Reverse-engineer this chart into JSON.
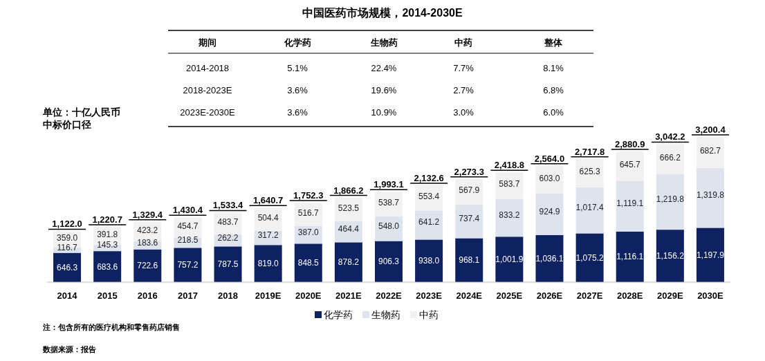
{
  "chart_data": {
    "type": "bar",
    "stacked": true,
    "title": "中国医药市场规模，2014-2030E",
    "categories": [
      "2014",
      "2015",
      "2016",
      "2017",
      "2018",
      "2019E",
      "2020E",
      "2021E",
      "2022E",
      "2023E",
      "2024E",
      "2025E",
      "2026E",
      "2027E",
      "2028E",
      "2029E",
      "2030E"
    ],
    "series": [
      {
        "name": "化学药",
        "color": "#0e2160",
        "values": [
          646.3,
          683.6,
          722.6,
          757.2,
          787.5,
          819.0,
          848.5,
          878.2,
          906.3,
          938.0,
          968.1,
          1001.9,
          1036.1,
          1075.2,
          1116.1,
          1156.2,
          1197.9
        ],
        "value_labels": [
          "646.3",
          "683.6",
          "722.6",
          "757.2",
          "787.5",
          "819.0",
          "848.5",
          "878.2",
          "906.3",
          "938.0",
          "968.1",
          "1,001.9",
          "1,036.1",
          "1,075.2",
          "1,116.1",
          "1,156.2",
          "1,197.9"
        ]
      },
      {
        "name": "生物药",
        "color": "#dde4ee",
        "values": [
          116.7,
          145.3,
          183.6,
          218.5,
          262.2,
          317.2,
          387.0,
          464.4,
          548.0,
          641.2,
          737.4,
          833.2,
          924.9,
          1017.4,
          1119.1,
          1219.8,
          1319.8
        ],
        "value_labels": [
          "116.7",
          "145.3",
          "183.6",
          "218.5",
          "262.2",
          "317.2",
          "387.0",
          "464.4",
          "548.0",
          "641.2",
          "737.4",
          "833.2",
          "924.9",
          "1,017.4",
          "1,119.1",
          "1,219.8",
          "1,319.8"
        ]
      },
      {
        "name": "中药",
        "color": "#f1f1f1",
        "values": [
          359.0,
          391.8,
          423.2,
          454.7,
          483.7,
          504.4,
          516.7,
          523.5,
          538.7,
          553.4,
          567.9,
          583.7,
          603.0,
          625.3,
          645.7,
          666.2,
          682.7
        ],
        "value_labels": [
          "359.0",
          "391.8",
          "423.2",
          "454.7",
          "483.7",
          "504.4",
          "516.7",
          "523.5",
          "538.7",
          "553.4",
          "567.9",
          "583.7",
          "603.0",
          "625.3",
          "645.7",
          "666.2",
          "682.7"
        ]
      }
    ],
    "totals": [
      "1,122.0",
      "1,220.7",
      "1,329.4",
      "1,430.4",
      "1,533.4",
      "1,640.7",
      "1,752.3",
      "1,866.2",
      "1,993.1",
      "2,132.6",
      "2,273.3",
      "2,418.8",
      "2,564.0",
      "2,717.8",
      "2,880.9",
      "3,042.2",
      "3,200.4"
    ],
    "ylim": [
      0,
      3200.4
    ],
    "legend": "bottom",
    "annotations": [
      "期间",
      "化学药",
      "生物药",
      "中药",
      "整体",
      "2014-2018",
      "5.1%",
      "22.4%",
      "7.7%",
      "8.1%",
      "2018-2023E",
      "3.6%",
      "19.6%",
      "2.7%",
      "6.8%",
      "2023E-2030E",
      "3.6%",
      "10.9%",
      "3.0%",
      "6.0%",
      "单位：十亿人民币",
      "中标价口径",
      "注：包含所有的医疗机构和零售药店销售",
      "数据来源：报告"
    ]
  }
}
